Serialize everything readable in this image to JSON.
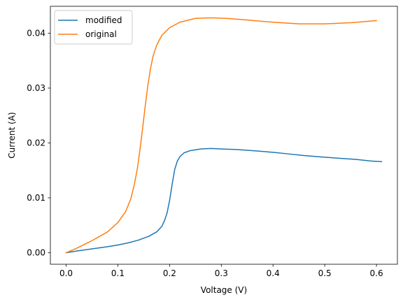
{
  "chart_data": {
    "type": "line",
    "title": "",
    "xlabel": "Voltage (V)",
    "ylabel": "Current (A)",
    "xlim": [
      -0.0305,
      0.6405
    ],
    "ylim": [
      -0.0021,
      0.0449
    ],
    "xticks": [
      0.0,
      0.1,
      0.2,
      0.3,
      0.4,
      0.5,
      0.6
    ],
    "xtick_labels": [
      "0.0",
      "0.1",
      "0.2",
      "0.3",
      "0.4",
      "0.5",
      "0.6"
    ],
    "yticks": [
      0.0,
      0.01,
      0.02,
      0.03,
      0.04
    ],
    "ytick_labels": [
      "0.00",
      "0.01",
      "0.02",
      "0.03",
      "0.04"
    ],
    "grid": false,
    "legend_position": "top-left",
    "series": [
      {
        "name": "modified",
        "color": "#1f77b4",
        "points": [
          [
            0.0,
            0.0
          ],
          [
            0.02,
            0.0003
          ],
          [
            0.05,
            0.0007
          ],
          [
            0.08,
            0.0011
          ],
          [
            0.1,
            0.0014
          ],
          [
            0.12,
            0.0018
          ],
          [
            0.14,
            0.0023
          ],
          [
            0.16,
            0.003
          ],
          [
            0.175,
            0.0038
          ],
          [
            0.185,
            0.0048
          ],
          [
            0.19,
            0.0058
          ],
          [
            0.195,
            0.0072
          ],
          [
            0.2,
            0.0095
          ],
          [
            0.205,
            0.0125
          ],
          [
            0.21,
            0.0152
          ],
          [
            0.215,
            0.0167
          ],
          [
            0.22,
            0.0175
          ],
          [
            0.228,
            0.0182
          ],
          [
            0.24,
            0.0186
          ],
          [
            0.26,
            0.0189
          ],
          [
            0.28,
            0.019
          ],
          [
            0.3,
            0.0189
          ],
          [
            0.33,
            0.0188
          ],
          [
            0.36,
            0.0186
          ],
          [
            0.4,
            0.0183
          ],
          [
            0.43,
            0.018
          ],
          [
            0.46,
            0.0177
          ],
          [
            0.5,
            0.0174
          ],
          [
            0.53,
            0.0172
          ],
          [
            0.56,
            0.017
          ],
          [
            0.59,
            0.0167
          ],
          [
            0.61,
            0.0166
          ]
        ]
      },
      {
        "name": "original",
        "color": "#ff7f0e",
        "points": [
          [
            0.0,
            0.0
          ],
          [
            0.02,
            0.0008
          ],
          [
            0.05,
            0.0022
          ],
          [
            0.08,
            0.0038
          ],
          [
            0.1,
            0.0055
          ],
          [
            0.115,
            0.0075
          ],
          [
            0.125,
            0.0098
          ],
          [
            0.132,
            0.0125
          ],
          [
            0.138,
            0.0155
          ],
          [
            0.143,
            0.019
          ],
          [
            0.148,
            0.0228
          ],
          [
            0.153,
            0.0268
          ],
          [
            0.158,
            0.0305
          ],
          [
            0.163,
            0.0335
          ],
          [
            0.168,
            0.0358
          ],
          [
            0.175,
            0.0378
          ],
          [
            0.185,
            0.0396
          ],
          [
            0.2,
            0.041
          ],
          [
            0.22,
            0.042
          ],
          [
            0.25,
            0.0427
          ],
          [
            0.28,
            0.0428
          ],
          [
            0.31,
            0.0427
          ],
          [
            0.35,
            0.0424
          ],
          [
            0.4,
            0.042
          ],
          [
            0.45,
            0.0417
          ],
          [
            0.5,
            0.0417
          ],
          [
            0.55,
            0.0419
          ],
          [
            0.6,
            0.0423
          ]
        ]
      }
    ]
  }
}
